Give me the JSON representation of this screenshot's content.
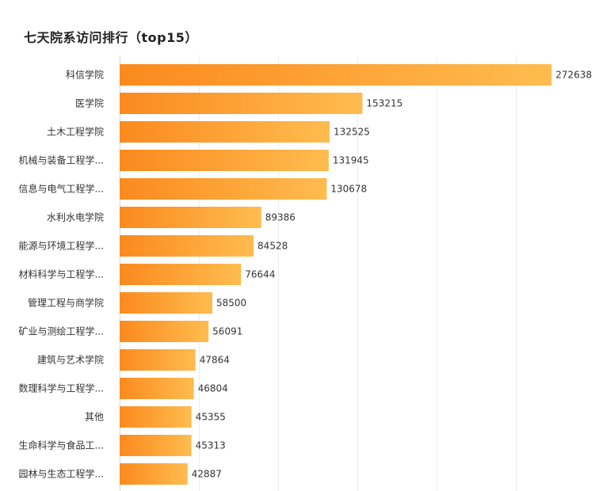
{
  "chart_data": {
    "type": "bar",
    "orientation": "horizontal",
    "title": "七天院系访问排行（top15）",
    "xlabel": "",
    "ylabel": "",
    "xlim": [
      0,
      300000
    ],
    "grid": true,
    "gradient_colors": [
      "#fb8a1e",
      "#ffbc4f"
    ],
    "categories": [
      "科信学院",
      "医学院",
      "土木工程学院",
      "机械与装备工程学...",
      "信息与电气工程学...",
      "水利水电学院",
      "能源与环境工程学...",
      "材料科学与工程学...",
      "管理工程与商学院",
      "矿业与测绘工程学...",
      "建筑与艺术学院",
      "数理科学与工程学...",
      "其他",
      "生命科学与食品工...",
      "园林与生态工程学..."
    ],
    "values": [
      272638,
      153215,
      132525,
      131945,
      130678,
      89386,
      84528,
      76644,
      58500,
      56091,
      47864,
      46804,
      45355,
      45313,
      42887
    ]
  }
}
